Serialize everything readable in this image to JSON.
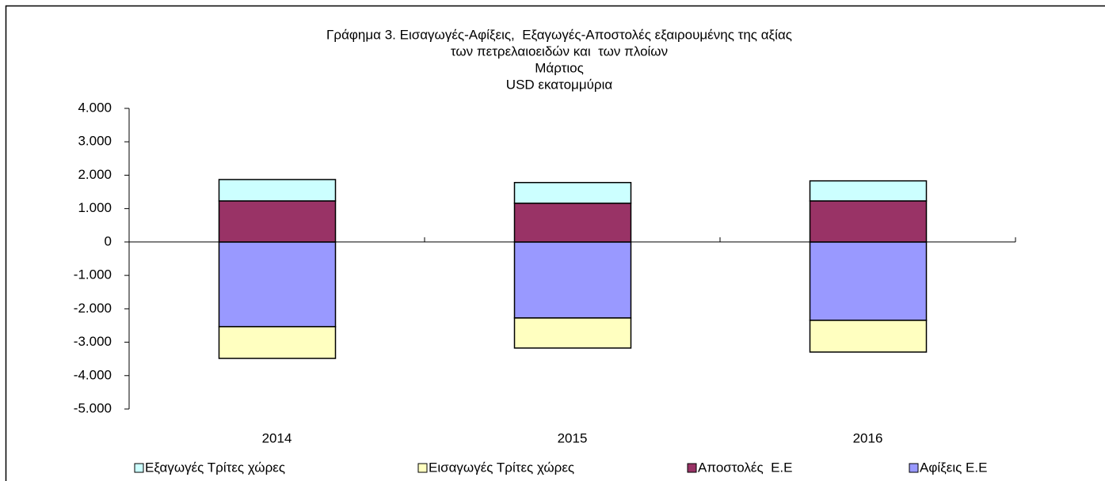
{
  "chart_data": {
    "type": "bar",
    "stacked": true,
    "title": [
      "Γράφημα 3. Εισαγωγές-Αφίξεις,  Εξαγωγές-Αποστολές εξαιρουμένης της αξίας",
      "των πετρελαιοειδών και  των πλοίων",
      "Μάρτιος",
      "USD εκατομμύρια"
    ],
    "categories": [
      "2014",
      "2015",
      "2016"
    ],
    "series": [
      {
        "name": "Εξαγωγές Τρίτες χώρες",
        "color": "#ccffff",
        "values": [
          640,
          620,
          600
        ]
      },
      {
        "name": "Εισαγωγές Τρίτες χώρες",
        "color": "#ffffc0",
        "values": [
          -950,
          -900,
          -950
        ]
      },
      {
        "name": "Αποστολές  Ε.Ε",
        "color": "#993366",
        "values": [
          1230,
          1160,
          1230
        ]
      },
      {
        "name": "Αφίξεις Ε.Ε",
        "color": "#9999ff",
        "values": [
          -2535,
          -2275,
          -2345
        ]
      }
    ],
    "ylim": [
      -5000,
      4000
    ],
    "yticks": [
      {
        "value": -5000,
        "label": "-5.000"
      },
      {
        "value": -4000,
        "label": "-4.000"
      },
      {
        "value": -3000,
        "label": "-3.000"
      },
      {
        "value": -2000,
        "label": "-2.000"
      },
      {
        "value": -1000,
        "label": "-1.000"
      },
      0,
      {
        "value": 1000,
        "label": "1.000"
      },
      {
        "value": 2000,
        "label": "2.000"
      },
      {
        "value": 3000,
        "label": "3.000"
      },
      {
        "value": 4000,
        "label": "4.000"
      }
    ],
    "legend": "bottom"
  }
}
